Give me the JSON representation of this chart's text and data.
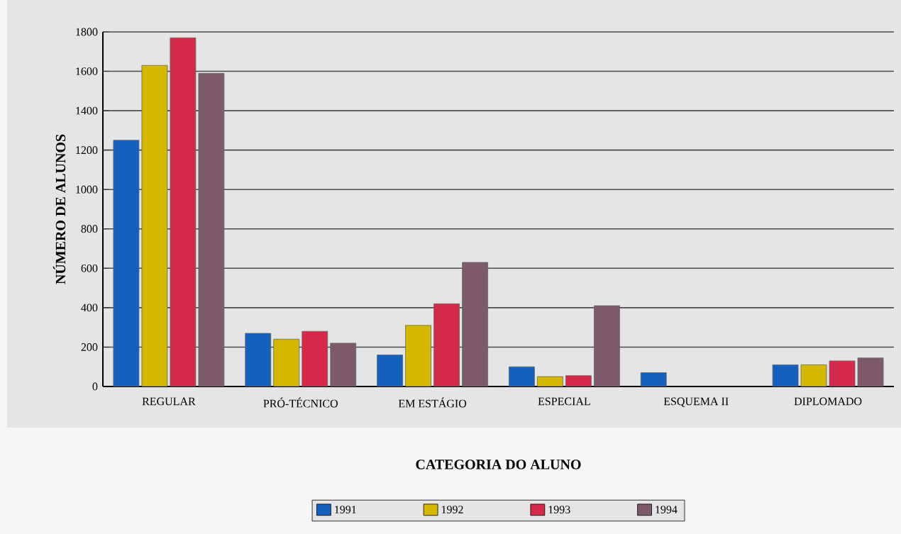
{
  "chart_data": {
    "type": "bar",
    "xlabel": "CATEGORIA DO ALUNO",
    "ylabel": "NÚMERO DE ALUNOS",
    "categories": [
      "REGULAR",
      "PRÓ-TÉCNICO",
      "EM ESTÁGIO",
      "ESPECIAL",
      "ESQUEMA II",
      "DIPLOMADO"
    ],
    "series": [
      {
        "name": "1991",
        "color": "#1560bd",
        "values": [
          1250,
          270,
          160,
          100,
          70,
          110
        ]
      },
      {
        "name": "1992",
        "color": "#d4b800",
        "values": [
          1630,
          240,
          310,
          50,
          null,
          110
        ]
      },
      {
        "name": "1993",
        "color": "#d42a4a",
        "values": [
          1770,
          280,
          420,
          55,
          null,
          130
        ]
      },
      {
        "name": "1994",
        "color": "#7d5a6a",
        "values": [
          1590,
          220,
          630,
          410,
          null,
          145
        ]
      }
    ],
    "ylim": [
      0,
      1800
    ],
    "yticks": [
      0,
      200,
      400,
      600,
      800,
      1000,
      1200,
      1400,
      1600,
      1800
    ],
    "grid": "y",
    "legend": "bottom"
  }
}
